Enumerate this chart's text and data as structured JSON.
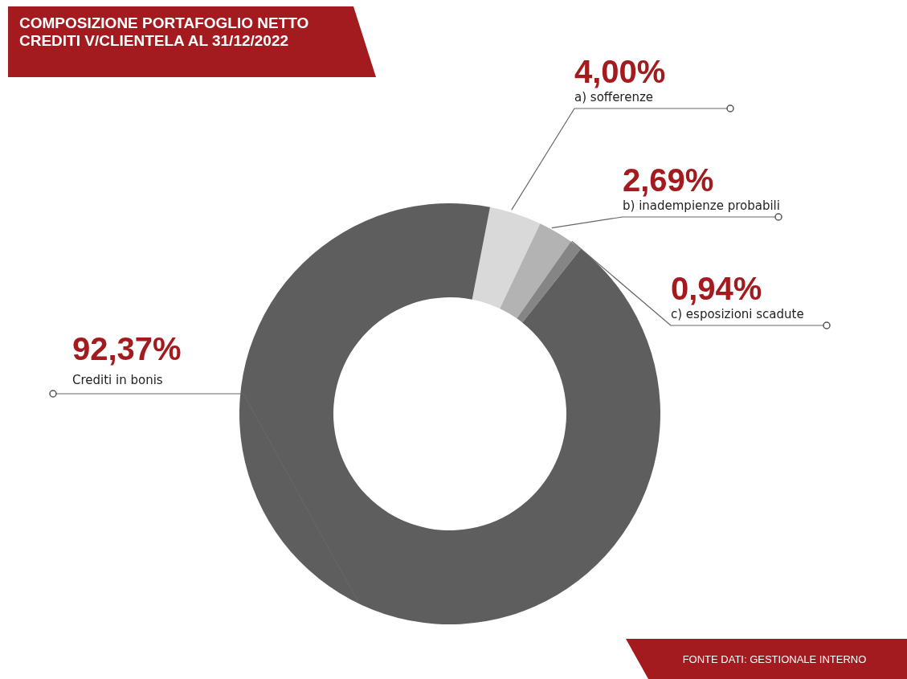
{
  "chart_data": {
    "type": "donut",
    "title": "COMPOSIZIONE PORTAFOGLIO NETTO CREDITI V/CLIENTELA AL 31/12/2022",
    "categories": [
      "a) sofferenze",
      "b) inadempienze probabili",
      "c) esposizioni scadute",
      "Crediti in bonis"
    ],
    "values": [
      4.0,
      2.69,
      0.94,
      92.37
    ],
    "value_labels": [
      "4,00%",
      "2,69%",
      "0,94%",
      "92,37%"
    ],
    "colors": [
      "#d9d9d9",
      "#b3b3b3",
      "#858585",
      "#5e5e5e"
    ],
    "annotations": [
      "FONTE DATI: GESTIONALE INTERNO"
    ]
  }
}
